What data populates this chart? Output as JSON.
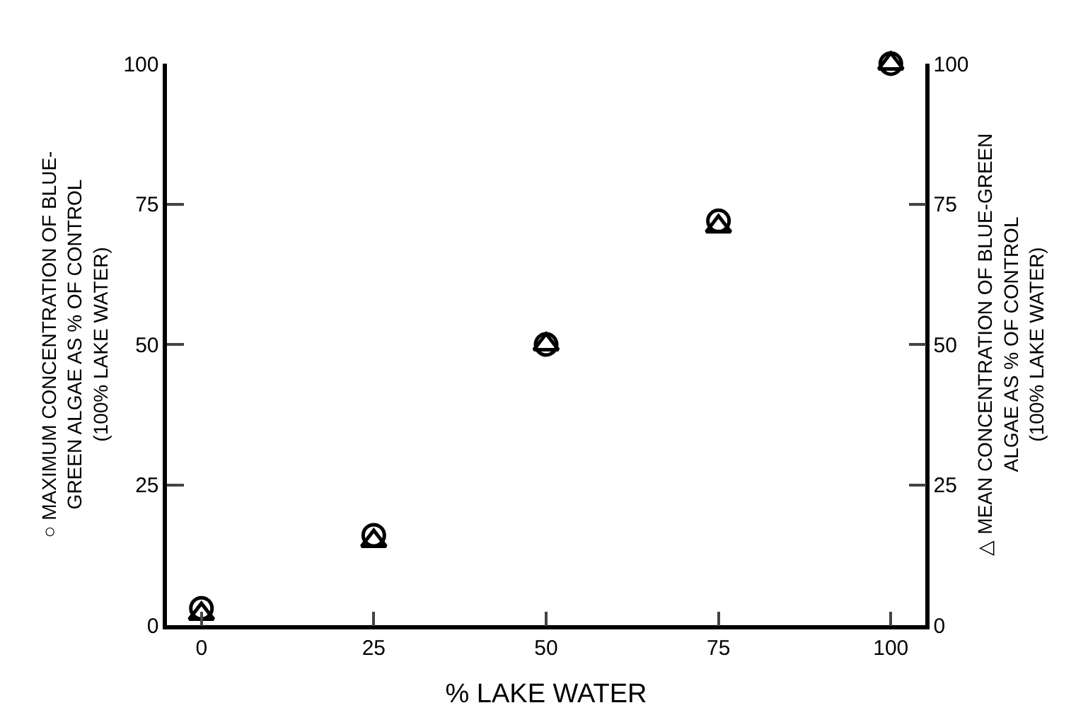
{
  "chart_data": {
    "type": "scatter",
    "xlabel": "% LAKE WATER",
    "ylabel": "○ MAXIMUM CONCENTRATION OF BLUE-\nGREEN ALGAE AS % OF CONTROL\n(100% LAKE WATER)",
    "y2label": "△ MEAN CONCENTRATION OF BLUE-GREEN\nALGAE AS % OF CONTROL\n(100% LAKE WATER)",
    "x": [
      0,
      25,
      50,
      75,
      100
    ],
    "series": [
      {
        "color": "#000000",
        "marker": "circle",
        "values": [
          3,
          16,
          50,
          72,
          100
        ]
      },
      {
        "color": "#000000",
        "marker": "triangle",
        "axis": "y2",
        "values": [
          2,
          15,
          50,
          71,
          100
        ]
      }
    ],
    "xlim": [
      -5,
      105
    ],
    "xticks": [
      0,
      25,
      50,
      75,
      100
    ],
    "ylim": [
      0,
      100
    ],
    "yticks": [
      0,
      25,
      50,
      75,
      100
    ],
    "y2lim": [
      0,
      100
    ],
    "y2ticks": [
      0,
      25,
      50,
      75,
      100
    ]
  }
}
